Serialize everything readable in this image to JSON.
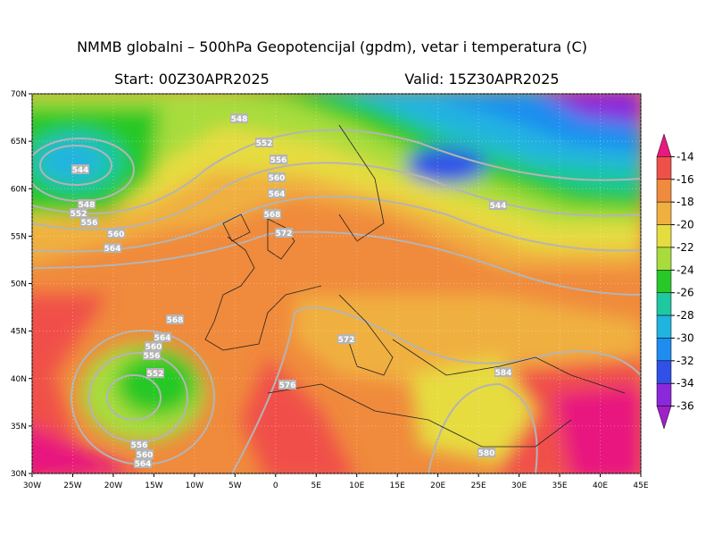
{
  "title": "NMMB globalni – 500hPa Geopotencijal (gpdm), vetar i temperatura (C)",
  "start": "Start: 00Z30APR2025",
  "valid": "Valid: 15Z30APR2025",
  "lon_labels": [
    "30W",
    "25W",
    "20W",
    "15W",
    "10W",
    "5W",
    "0",
    "5E",
    "10E",
    "15E",
    "20E",
    "25E",
    "30E",
    "35E",
    "40E",
    "45E"
  ],
  "lat_labels": [
    "30N",
    "35N",
    "40N",
    "45N",
    "50N",
    "55N",
    "60N",
    "65N",
    "70N"
  ],
  "colorbar": {
    "levels": [
      -14,
      -16,
      -18,
      -20,
      -22,
      -24,
      -26,
      -28,
      -30,
      -32,
      -34,
      -36
    ],
    "colors": [
      "#e8187e",
      "#f0504a",
      "#f08a3c",
      "#f0b040",
      "#e6dc40",
      "#a8dc3c",
      "#28c828",
      "#1ec8a0",
      "#20b4e0",
      "#1e8cf0",
      "#3050e8",
      "#8c28dc",
      "#a020c8"
    ]
  },
  "contour_labels": [
    548,
    552,
    556,
    560,
    564,
    568,
    572,
    544,
    548,
    552,
    556,
    560,
    564,
    568,
    564,
    560,
    556,
    552,
    576,
    572,
    584,
    580,
    556,
    560,
    564,
    544
  ]
}
